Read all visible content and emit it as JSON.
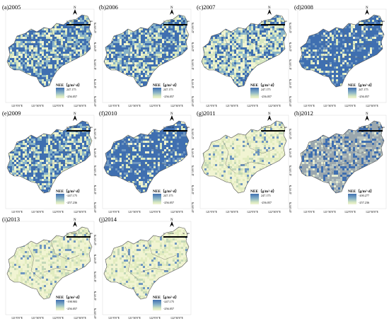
{
  "panels": [
    {
      "label": "(a)2005",
      "legend_high": "247.175",
      "legend_low": "-256.057",
      "style": "blue-mixed"
    },
    {
      "label": "(b)2006",
      "legend_high": "247.175",
      "legend_low": "-256.057",
      "style": "blue-mixed"
    },
    {
      "label": "(c)2007",
      "legend_high": "247.175",
      "legend_low": "-256.057",
      "style": "green-mixed"
    },
    {
      "label": "(d)2008",
      "legend_high": "247.175",
      "legend_low": "-256.057",
      "style": "blue-heavy"
    },
    {
      "label": "(e)2009",
      "legend_high": "-247.175",
      "legend_low": "-257.236",
      "style": "blue-mixed"
    },
    {
      "label": "(f)2010",
      "legend_high": "247.175",
      "legend_low": "-256.057",
      "style": "blue-heavy"
    },
    {
      "label": "(g)2011",
      "legend_high": "247.175",
      "legend_low": "-256.057",
      "style": "yellow"
    },
    {
      "label": "(h)2012",
      "legend_high": "-200.277",
      "legend_low": "-257.236",
      "style": "gray-blue"
    },
    {
      "label": "(i)2013",
      "legend_high": "-198.903",
      "legend_low": "-256.057",
      "style": "yellow"
    },
    {
      "label": "(j)2014",
      "legend_high": "-247.175",
      "legend_low": "-256.057",
      "style": "yellow"
    }
  ],
  "legend_title": "NEE（g/m²·d）",
  "north_label": "N",
  "scale_labels": [
    "0",
    "12.5",
    "25",
    "50"
  ],
  "scale_unit": "km",
  "x_ticks": [
    "121°0'0\"E",
    "121°30'0\"E",
    "122°0'0\"E",
    "122°30'0\"E"
  ],
  "y_ticks": [
    "42°30'0\"N",
    "42°0'0\"N",
    "41°30'0\"N",
    "41°0'0\"N",
    "40°30'0\"N"
  ],
  "colors": {
    "deep_blue": "#3f6fb0",
    "mid_blue": "#88b3c8",
    "pale_green": "#d7e7c0",
    "pale_yellow": "#f1f4d2",
    "gray": "#9aa7ae"
  }
}
